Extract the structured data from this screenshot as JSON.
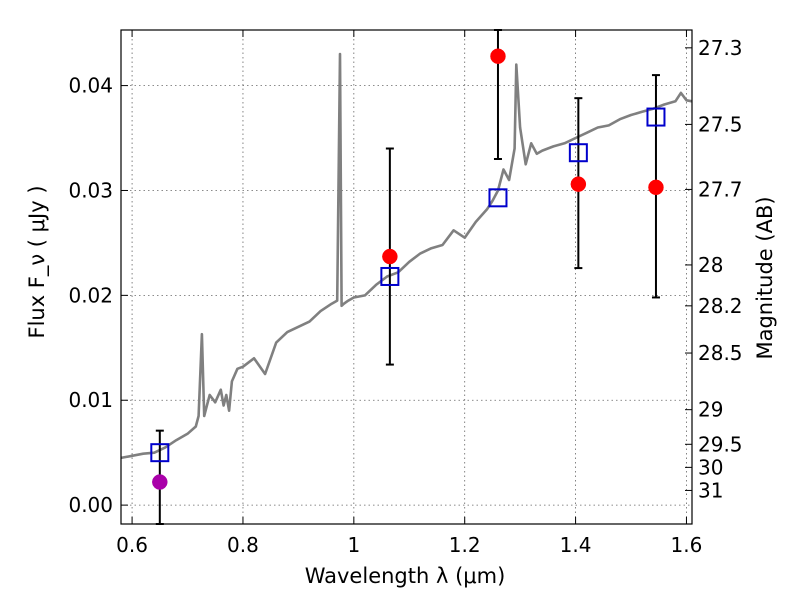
{
  "chart_data": {
    "type": "scatter",
    "title": "",
    "xlabel": "Wavelength  λ (μm)",
    "ylabel": "Flux  F_ν  ( μJy )",
    "ylabel_right": "Magnitude (AB)",
    "xlim": [
      0.58,
      1.61
    ],
    "ylim": [
      -0.0018,
      0.0453
    ],
    "grid": true,
    "x_ticks": [
      0.6,
      0.8,
      1.0,
      1.2,
      1.4,
      1.6
    ],
    "x_tick_labels": [
      "0.6",
      "0.8",
      "1",
      "1.2",
      "1.4",
      "1.6"
    ],
    "y_ticks": [
      0.0,
      0.01,
      0.02,
      0.03,
      0.04
    ],
    "y_tick_labels": [
      "0.00",
      "0.01",
      "0.02",
      "0.03",
      "0.04"
    ],
    "right_axis_ticks": [
      {
        "label": "27.3",
        "flux": 0.0436
      },
      {
        "label": "27.5",
        "flux": 0.0363
      },
      {
        "label": "27.7",
        "flux": 0.0301
      },
      {
        "label": "28",
        "flux": 0.0229
      },
      {
        "label": "28.2",
        "flux": 0.019
      },
      {
        "label": "28.5",
        "flux": 0.0145
      },
      {
        "label": "29",
        "flux": 0.0091
      },
      {
        "label": "29.5",
        "flux": 0.0058
      },
      {
        "label": "30",
        "flux": 0.0036
      },
      {
        "label": "31",
        "flux": 0.0014
      }
    ],
    "series": [
      {
        "kind": "spectrum_line",
        "color": "#808080",
        "x": [
          0.58,
          0.6,
          0.62,
          0.64,
          0.66,
          0.68,
          0.7,
          0.715,
          0.72,
          0.726,
          0.73,
          0.735,
          0.74,
          0.75,
          0.76,
          0.765,
          0.77,
          0.775,
          0.78,
          0.79,
          0.8,
          0.82,
          0.84,
          0.86,
          0.88,
          0.9,
          0.92,
          0.94,
          0.96,
          0.97,
          0.975,
          0.978,
          0.982,
          0.99,
          1.0,
          1.02,
          1.04,
          1.06,
          1.08,
          1.1,
          1.12,
          1.14,
          1.16,
          1.18,
          1.2,
          1.22,
          1.24,
          1.25,
          1.26,
          1.27,
          1.28,
          1.29,
          1.293,
          1.3,
          1.31,
          1.32,
          1.33,
          1.34,
          1.36,
          1.38,
          1.4,
          1.42,
          1.44,
          1.46,
          1.48,
          1.5,
          1.52,
          1.54,
          1.56,
          1.58,
          1.59,
          1.6,
          1.61
        ],
        "y": [
          0.0045,
          0.0047,
          0.0049,
          0.005,
          0.0055,
          0.0062,
          0.0068,
          0.0075,
          0.0085,
          0.0163,
          0.0085,
          0.0095,
          0.0105,
          0.0098,
          0.011,
          0.0095,
          0.0105,
          0.009,
          0.0118,
          0.013,
          0.0132,
          0.014,
          0.0125,
          0.0155,
          0.0165,
          0.017,
          0.0175,
          0.0185,
          0.0192,
          0.0195,
          0.043,
          0.019,
          0.0192,
          0.0195,
          0.0198,
          0.02,
          0.021,
          0.0218,
          0.0222,
          0.0232,
          0.024,
          0.0245,
          0.0248,
          0.0262,
          0.0255,
          0.027,
          0.0282,
          0.029,
          0.03,
          0.032,
          0.031,
          0.034,
          0.042,
          0.036,
          0.0325,
          0.0345,
          0.0335,
          0.0338,
          0.0342,
          0.0345,
          0.035,
          0.0355,
          0.036,
          0.0362,
          0.0368,
          0.0372,
          0.0375,
          0.0378,
          0.0382,
          0.0385,
          0.0393,
          0.0386,
          0.0385
        ]
      },
      {
        "kind": "model_squares",
        "color": "#0000cc",
        "x": [
          0.65,
          1.065,
          1.26,
          1.405,
          1.545
        ],
        "y": [
          0.005,
          0.0218,
          0.0293,
          0.0336,
          0.037
        ]
      },
      {
        "kind": "observed_points",
        "color": "#ff0000",
        "x": [
          1.065,
          1.26,
          1.405,
          1.545
        ],
        "y": [
          0.0237,
          0.0428,
          0.0306,
          0.0303
        ],
        "err_low": [
          0.0134,
          0.033,
          0.0226,
          0.0198
        ],
        "err_high": [
          0.034,
          0.0453,
          0.0388,
          0.041
        ]
      },
      {
        "kind": "upper_limit_point",
        "color": "#aa00aa",
        "x": [
          0.65
        ],
        "y": [
          0.0022
        ],
        "err_low": [
          -0.0018
        ],
        "err_high": [
          0.0071
        ]
      }
    ]
  }
}
